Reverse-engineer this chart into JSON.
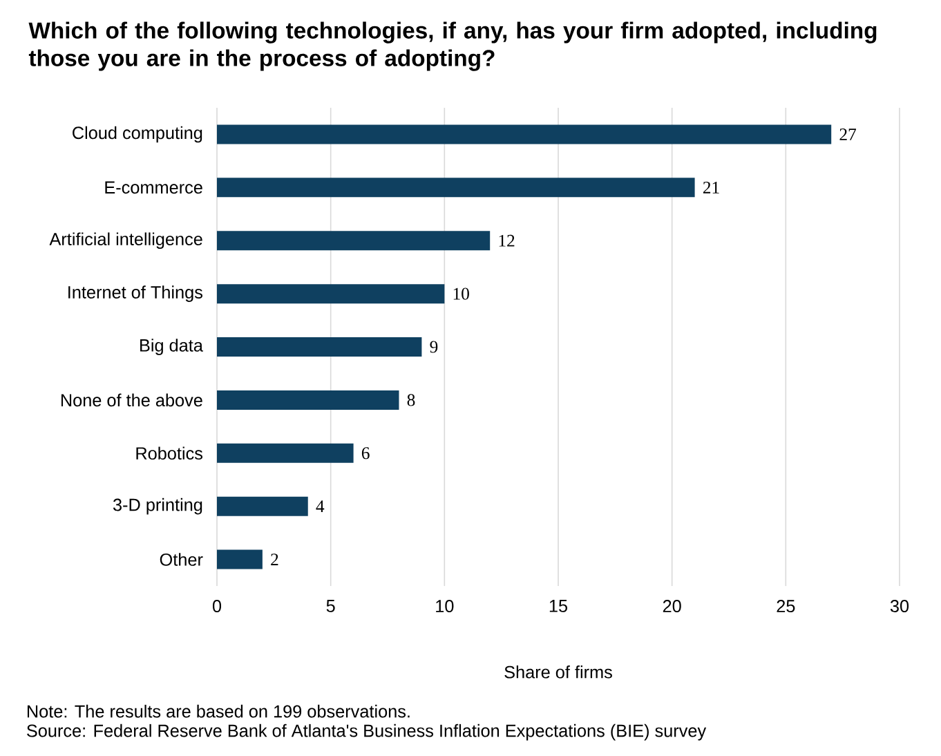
{
  "chart_data": {
    "type": "bar",
    "orientation": "horizontal",
    "title": "Which of the following technologies, if any, has your firm adopted, including those you are in the process of adopting?",
    "categories": [
      "Cloud computing",
      "E-commerce",
      "Artificial intelligence",
      "Internet of Things",
      "Big data",
      "None of the above",
      "Robotics",
      "3-D printing",
      "Other"
    ],
    "values": [
      27,
      21,
      12,
      10,
      9,
      8,
      6,
      4,
      2
    ],
    "color": "#0f4060",
    "xlim": [
      0,
      30
    ],
    "xticks": [
      0,
      5,
      10,
      15,
      20,
      25,
      30
    ],
    "xlabel": "Share of firms",
    "grid": "x",
    "data_labels": true,
    "annotations": [
      "Note: The results are based on 199 observations.",
      "Source: Federal Reserve Bank of Atlanta's Business Inflation Expectations (BIE) survey"
    ]
  }
}
